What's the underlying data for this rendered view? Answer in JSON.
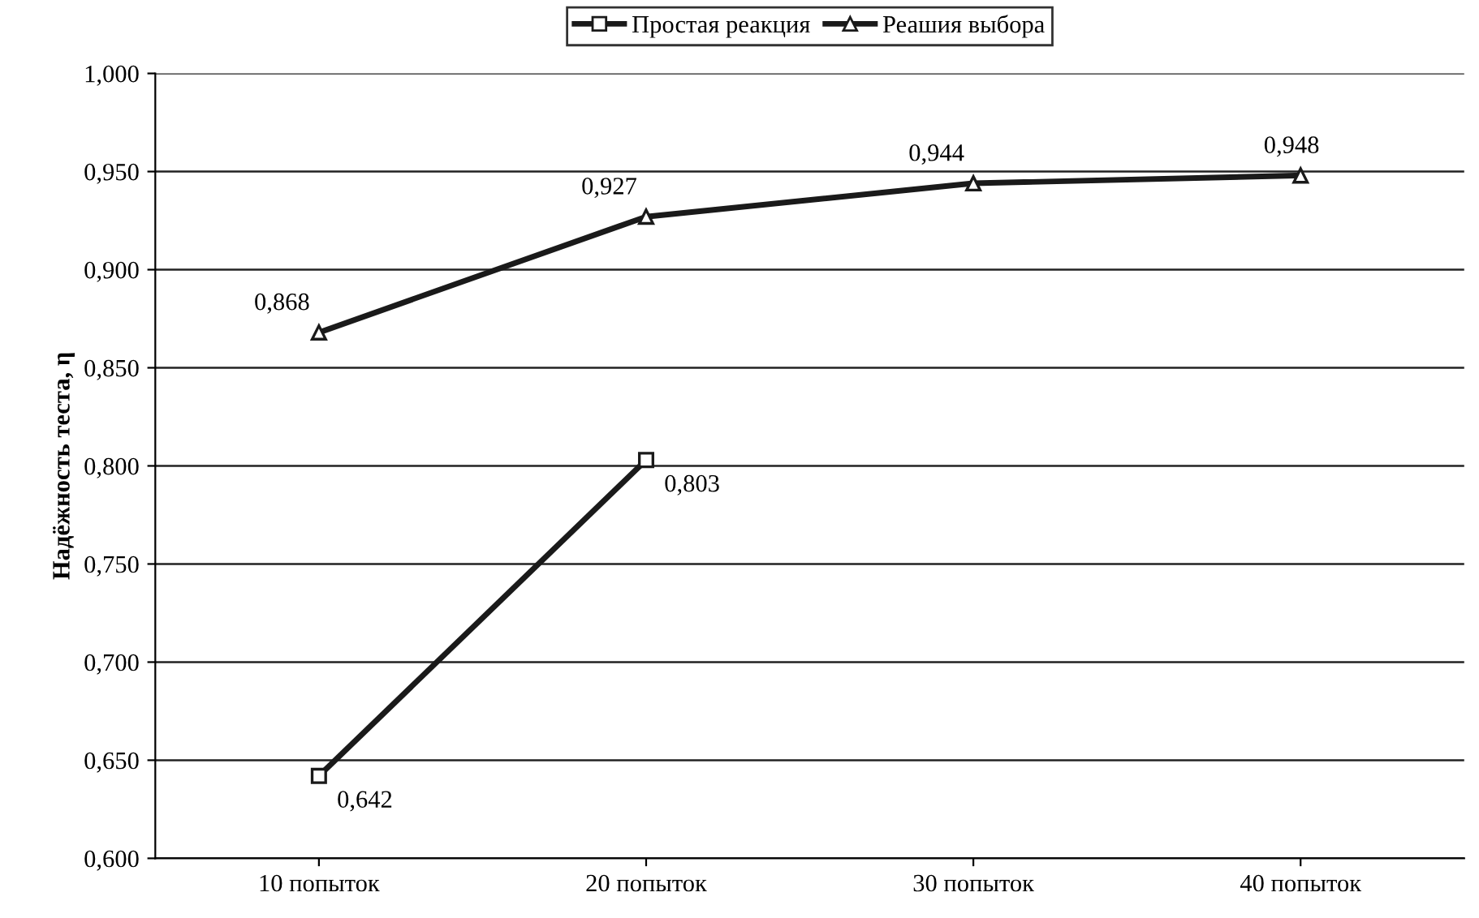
{
  "chart_data": {
    "type": "line",
    "ylabel": "Надёжность теста, η",
    "categories": [
      "10 попыток",
      "20 попыток",
      "30 попыток",
      "40 попыток"
    ],
    "series": [
      {
        "name": "Простая реакция",
        "color": "#1a1a1a",
        "marker": "square",
        "values": [
          0.642,
          0.803,
          null,
          null
        ],
        "value_labels": [
          "0,642",
          "0,803",
          null,
          null
        ]
      },
      {
        "name": "Реашия выбора",
        "color": "#1a1a1a",
        "marker": "triangle",
        "values": [
          0.868,
          0.927,
          0.944,
          0.948
        ],
        "value_labels": [
          "0,868",
          "0,927",
          "0,944",
          "0,948"
        ]
      }
    ],
    "ylim": [
      0.6,
      1.0
    ],
    "yticks": [
      {
        "value": 0.6,
        "label": "0,600"
      },
      {
        "value": 0.65,
        "label": "0,650"
      },
      {
        "value": 0.7,
        "label": "0,700"
      },
      {
        "value": 0.75,
        "label": "0,750"
      },
      {
        "value": 0.8,
        "label": "0,800"
      },
      {
        "value": 0.85,
        "label": "0,850"
      },
      {
        "value": 0.9,
        "label": "0,900"
      },
      {
        "value": 0.95,
        "label": "0,950"
      },
      {
        "value": 1.0,
        "label": "1,000"
      }
    ],
    "grid": "y",
    "legend": "top",
    "line_style": "solid"
  }
}
